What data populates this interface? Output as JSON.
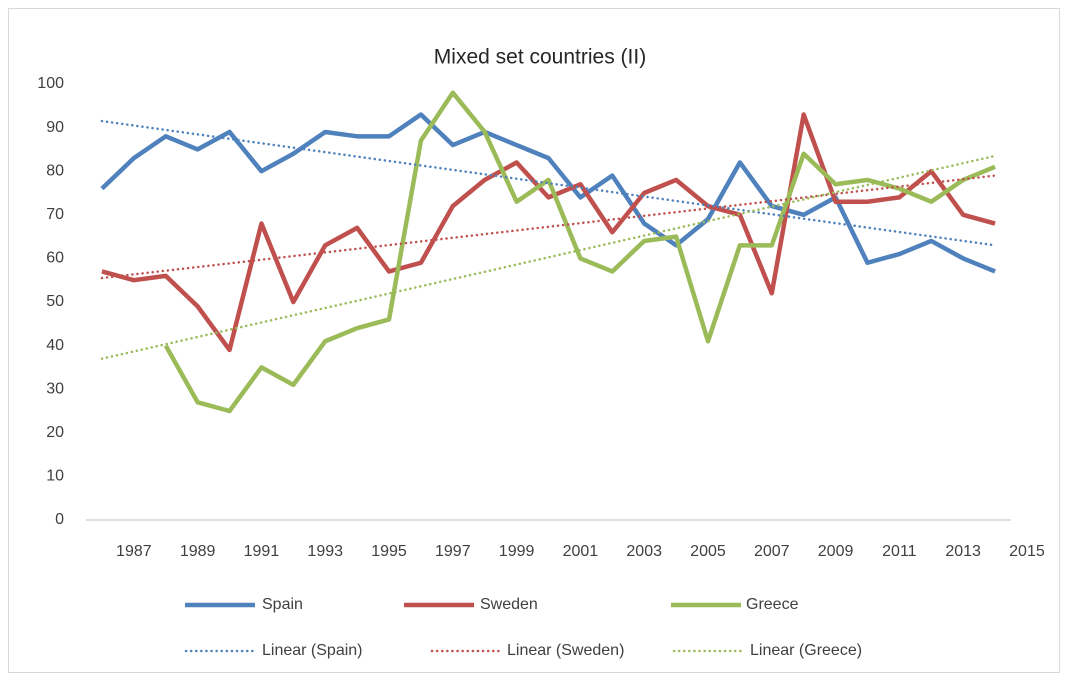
{
  "chart_data": {
    "type": "line",
    "title": "Mixed set countries (II)",
    "x": [
      1986,
      1987,
      1988,
      1989,
      1990,
      1991,
      1992,
      1993,
      1994,
      1995,
      1996,
      1997,
      1998,
      1999,
      2000,
      2001,
      2002,
      2003,
      2004,
      2005,
      2006,
      2007,
      2008,
      2009,
      2010,
      2011,
      2012,
      2013,
      2014
    ],
    "xlim": [
      1985.5,
      2014.5
    ],
    "xticks": [
      1987,
      1989,
      1991,
      1993,
      1995,
      1997,
      1999,
      2001,
      2003,
      2005,
      2007,
      2009,
      2011,
      2013,
      2015
    ],
    "ylim": [
      0,
      100
    ],
    "yticks": [
      0,
      10,
      20,
      30,
      40,
      50,
      60,
      70,
      80,
      90,
      100
    ],
    "grid": false,
    "series": [
      {
        "name": "Spain",
        "color": "#4f81bd",
        "values": [
          76,
          83,
          88,
          85,
          89,
          80,
          84,
          89,
          88,
          88,
          93,
          86,
          89,
          86,
          83,
          74,
          79,
          68,
          63,
          69,
          82,
          72,
          70,
          74,
          59,
          61,
          64,
          60,
          57
        ]
      },
      {
        "name": "Sweden",
        "color": "#c0504d",
        "values": [
          57,
          55,
          56,
          49,
          39,
          68,
          50,
          63,
          67,
          57,
          59,
          72,
          78,
          82,
          74,
          77,
          66,
          75,
          78,
          72,
          70,
          52,
          93,
          73,
          73,
          74,
          80,
          70,
          68
        ]
      },
      {
        "name": "Greece",
        "color": "#9bbb59",
        "values": [
          null,
          null,
          40,
          27,
          25,
          35,
          31,
          41,
          44,
          46,
          87,
          98,
          89,
          73,
          78,
          60,
          57,
          64,
          65,
          41,
          63,
          63,
          84,
          77,
          78,
          76,
          73,
          78,
          81
        ]
      }
    ],
    "trendlines": [
      {
        "name": "Linear (Spain)",
        "color": "#4f81bd",
        "x": [
          1986,
          2014
        ],
        "values": [
          91.5,
          63
        ]
      },
      {
        "name": "Linear (Sweden)",
        "color": "#c0504d",
        "x": [
          1986,
          2014
        ],
        "values": [
          55.5,
          79
        ]
      },
      {
        "name": "Linear (Greece)",
        "color": "#9bbb59",
        "x": [
          1986,
          2014
        ],
        "values": [
          37,
          83.5
        ]
      }
    ]
  }
}
